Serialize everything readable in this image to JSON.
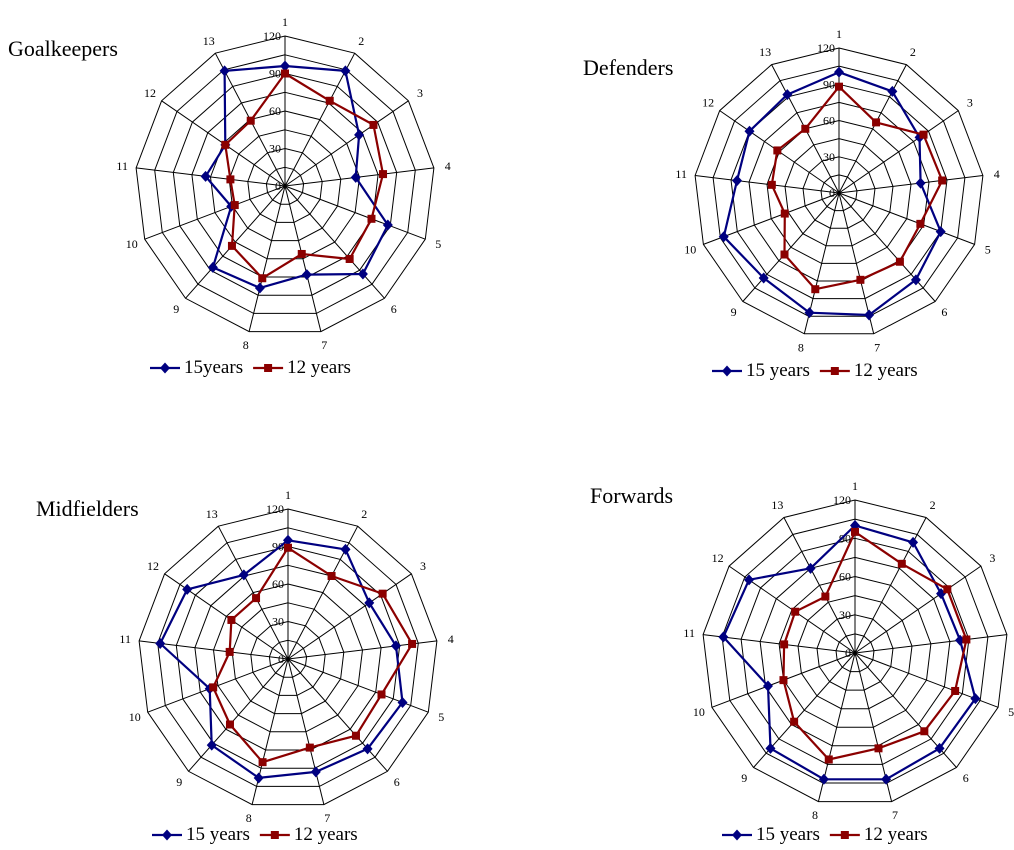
{
  "colors": {
    "series_a": "#000080",
    "series_b": "#8b0000",
    "grid": "#000000"
  },
  "chart_data": [
    {
      "type": "radar",
      "title": "Goalkeepers",
      "categories": [
        "1",
        "2",
        "3",
        "4",
        "5",
        "6",
        "7",
        "8",
        "9",
        "10",
        "11",
        "12",
        "13"
      ],
      "rlim": [
        0,
        120
      ],
      "ticks": [
        "0",
        "30",
        "60",
        "90",
        "120"
      ],
      "grid": true,
      "legend_position": "bottom",
      "series": [
        {
          "name": "15years",
          "values": [
            96,
            104,
            72,
            57,
            88,
            94,
            73,
            84,
            87,
            46,
            64,
            58,
            104
          ]
        },
        {
          "name": "12 years",
          "values": [
            90,
            77,
            86,
            79,
            74,
            78,
            56,
            76,
            64,
            43,
            44,
            58,
            59
          ]
        }
      ]
    },
    {
      "type": "radar",
      "title": "Defenders",
      "categories": [
        "1",
        "2",
        "3",
        "4",
        "5",
        "6",
        "7",
        "8",
        "9",
        "10",
        "11",
        "12",
        "13"
      ],
      "rlim": [
        0,
        120
      ],
      "ticks": [
        "0",
        "30",
        "60",
        "90",
        "120"
      ],
      "grid": true,
      "legend_position": "bottom",
      "series": [
        {
          "name": "15 years",
          "values": [
            100,
            95,
            81,
            68,
            90,
            96,
            104,
            102,
            94,
            102,
            85,
            90,
            92
          ]
        },
        {
          "name": "12 years",
          "values": [
            88,
            66,
            85,
            86,
            72,
            76,
            74,
            82,
            68,
            48,
            56,
            62,
            60
          ]
        }
      ]
    },
    {
      "type": "radar",
      "title": "Midfielders",
      "categories": [
        "1",
        "2",
        "3",
        "4",
        "5",
        "6",
        "7",
        "8",
        "9",
        "10",
        "11",
        "12",
        "13"
      ],
      "rlim": [
        0,
        120
      ],
      "ticks": [
        "0",
        "30",
        "60",
        "90",
        "120"
      ],
      "grid": true,
      "legend_position": "bottom",
      "series": [
        {
          "name": "15 years",
          "values": [
            95,
            99,
            79,
            87,
            98,
            96,
            93,
            98,
            92,
            67,
            103,
            98,
            76
          ]
        },
        {
          "name": "12 years",
          "values": [
            89,
            75,
            92,
            100,
            80,
            82,
            73,
            85,
            70,
            64,
            47,
            55,
            55
          ]
        }
      ]
    },
    {
      "type": "radar",
      "title": "Forwards",
      "categories": [
        "1",
        "2",
        "3",
        "4",
        "5",
        "6",
        "7",
        "8",
        "9",
        "10",
        "11",
        "12",
        "13"
      ],
      "rlim": [
        0,
        120
      ],
      "ticks": [
        "0",
        "30",
        "60",
        "90",
        "120"
      ],
      "grid": true,
      "legend_position": "bottom",
      "series": [
        {
          "name": "15 years",
          "values": [
            100,
            98,
            82,
            83,
            101,
            100,
            102,
            102,
            100,
            73,
            104,
            101,
            75
          ]
        },
        {
          "name": "12 years",
          "values": [
            95,
            79,
            88,
            88,
            84,
            82,
            77,
            86,
            72,
            60,
            56,
            57,
            50
          ]
        }
      ]
    }
  ]
}
